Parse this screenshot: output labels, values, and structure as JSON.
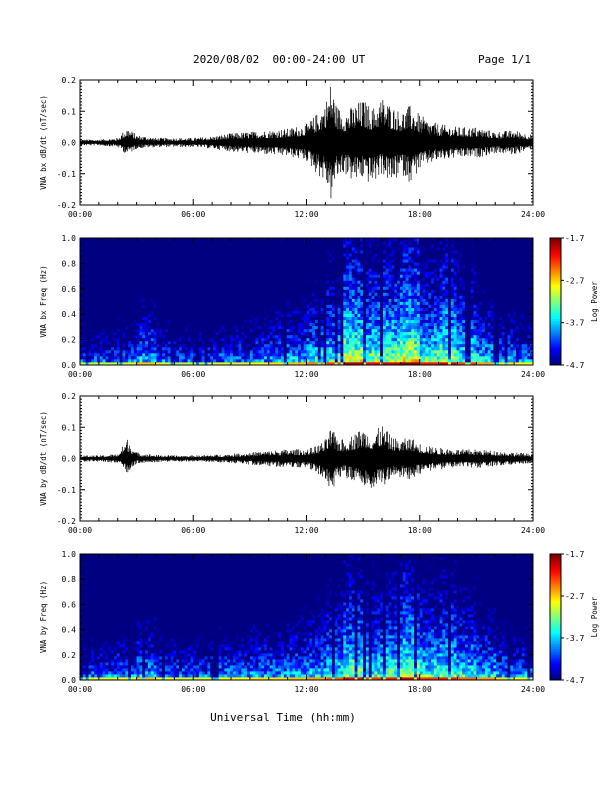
{
  "header": {
    "title": "2020/08/02  00:00-24:00 UT",
    "page": "Page 1/1"
  },
  "footer": {
    "xlabel": "Universal Time (hh:mm)"
  },
  "chart_data": [
    {
      "type": "line",
      "ylabel": "VNA bx dB/dt (nT/sec)",
      "xlim": [
        "00:00",
        "24:00"
      ],
      "ylim": [
        -0.2,
        0.2
      ],
      "x_tick_labels": [
        "00:00",
        "06:00",
        "12:00",
        "18:00",
        "24:00"
      ],
      "y_tick_labels": [
        "-0.2",
        "-0.1",
        "0.0",
        "0.1",
        "0.2"
      ],
      "x_hours": [
        0,
        1,
        2,
        2.5,
        3,
        4,
        5,
        6,
        7,
        8,
        9,
        10,
        11,
        12,
        12.5,
        13,
        13.3,
        13.6,
        14,
        14.5,
        15,
        15.5,
        16,
        16.5,
        17,
        17.5,
        18,
        18.5,
        19,
        20,
        21,
        22,
        23,
        24
      ],
      "envelope_max": [
        0.01,
        0.01,
        0.015,
        0.05,
        0.025,
        0.015,
        0.015,
        0.015,
        0.02,
        0.03,
        0.035,
        0.04,
        0.045,
        0.06,
        0.09,
        0.13,
        0.2,
        0.12,
        0.1,
        0.12,
        0.14,
        0.11,
        0.15,
        0.12,
        0.1,
        0.12,
        0.09,
        0.07,
        0.06,
        0.05,
        0.05,
        0.035,
        0.04,
        0.025
      ],
      "envelope_min": [
        -0.01,
        -0.01,
        -0.015,
        -0.04,
        -0.02,
        -0.015,
        -0.015,
        -0.015,
        -0.02,
        -0.03,
        -0.035,
        -0.04,
        -0.045,
        -0.06,
        -0.1,
        -0.13,
        -0.19,
        -0.12,
        -0.1,
        -0.13,
        -0.12,
        -0.14,
        -0.1,
        -0.14,
        -0.1,
        -0.13,
        -0.09,
        -0.07,
        -0.06,
        -0.05,
        -0.05,
        -0.035,
        -0.04,
        -0.02
      ]
    },
    {
      "type": "heatmap",
      "ylabel": "VNA bx Freq (Hz)",
      "colorbar_label": "Log Power",
      "xlim": [
        "00:00",
        "24:00"
      ],
      "ylim": [
        0.0,
        1.0
      ],
      "zlim": [
        -4.7,
        -1.7
      ],
      "x_tick_labels": [
        "00:00",
        "06:00",
        "12:00",
        "18:00",
        "24:00"
      ],
      "y_tick_labels": [
        "0.0",
        "0.2",
        "0.4",
        "0.6",
        "0.8",
        "1.0"
      ],
      "colorbar_tick_labels": [
        "-1.7",
        "-2.7",
        "-3.7",
        "-4.7"
      ],
      "low_freq_power_by_hour": [
        -3.3,
        -3.3,
        -3.2,
        -2.9,
        -3.2,
        -3.3,
        -3.3,
        -3.2,
        -3.2,
        -3.1,
        -3.0,
        -2.9,
        -2.7,
        -2.5,
        -2.1,
        -2.3,
        -2.2,
        -2.0,
        -2.4,
        -2.2,
        -2.5,
        -2.8,
        -3.0,
        -3.1
      ]
    },
    {
      "type": "line",
      "ylabel": "VNA by dB/dt (nT/sec)",
      "xlim": [
        "00:00",
        "24:00"
      ],
      "ylim": [
        -0.2,
        0.2
      ],
      "x_tick_labels": [
        "00:00",
        "06:00",
        "12:00",
        "18:00",
        "24:00"
      ],
      "y_tick_labels": [
        "-0.2",
        "-0.1",
        "0.0",
        "0.1",
        "0.2"
      ],
      "x_hours": [
        0,
        1,
        2,
        2.5,
        3,
        4,
        5,
        6,
        7,
        8,
        9,
        10,
        11,
        12,
        12.5,
        13,
        13.3,
        13.6,
        14,
        14.5,
        15,
        15.5,
        16,
        16.5,
        17,
        17.5,
        18,
        18.5,
        19,
        20,
        21,
        22,
        23,
        24
      ],
      "envelope_max": [
        0.01,
        0.01,
        0.015,
        0.065,
        0.02,
        0.012,
        0.01,
        0.01,
        0.012,
        0.015,
        0.02,
        0.025,
        0.03,
        0.03,
        0.04,
        0.06,
        0.1,
        0.07,
        0.06,
        0.08,
        0.1,
        0.08,
        0.11,
        0.07,
        0.06,
        0.07,
        0.05,
        0.04,
        0.035,
        0.03,
        0.03,
        0.025,
        0.02,
        0.015
      ],
      "envelope_min": [
        -0.01,
        -0.01,
        -0.015,
        -0.05,
        -0.015,
        -0.012,
        -0.01,
        -0.01,
        -0.012,
        -0.015,
        -0.02,
        -0.025,
        -0.03,
        -0.03,
        -0.05,
        -0.07,
        -0.14,
        -0.07,
        -0.06,
        -0.08,
        -0.09,
        -0.1,
        -0.09,
        -0.07,
        -0.06,
        -0.07,
        -0.05,
        -0.04,
        -0.035,
        -0.03,
        -0.03,
        -0.025,
        -0.02,
        -0.015
      ]
    },
    {
      "type": "heatmap",
      "ylabel": "VNA by Freq (Hz)",
      "colorbar_label": "Log Power",
      "xlim": [
        "00:00",
        "24:00"
      ],
      "ylim": [
        0.0,
        1.0
      ],
      "zlim": [
        -4.7,
        -1.7
      ],
      "x_tick_labels": [
        "00:00",
        "06:00",
        "12:00",
        "18:00",
        "24:00"
      ],
      "y_tick_labels": [
        "0.0",
        "0.2",
        "0.4",
        "0.6",
        "0.8",
        "1.0"
      ],
      "colorbar_tick_labels": [
        "-1.7",
        "-2.7",
        "-3.7",
        "-4.7"
      ],
      "low_freq_power_by_hour": [
        -3.2,
        -3.2,
        -3.1,
        -2.9,
        -3.1,
        -3.2,
        -3.2,
        -3.1,
        -3.1,
        -3.0,
        -3.0,
        -2.9,
        -2.8,
        -2.6,
        -2.3,
        -2.5,
        -2.4,
        -2.2,
        -2.5,
        -2.4,
        -2.6,
        -2.8,
        -3.0,
        -3.1
      ]
    }
  ]
}
